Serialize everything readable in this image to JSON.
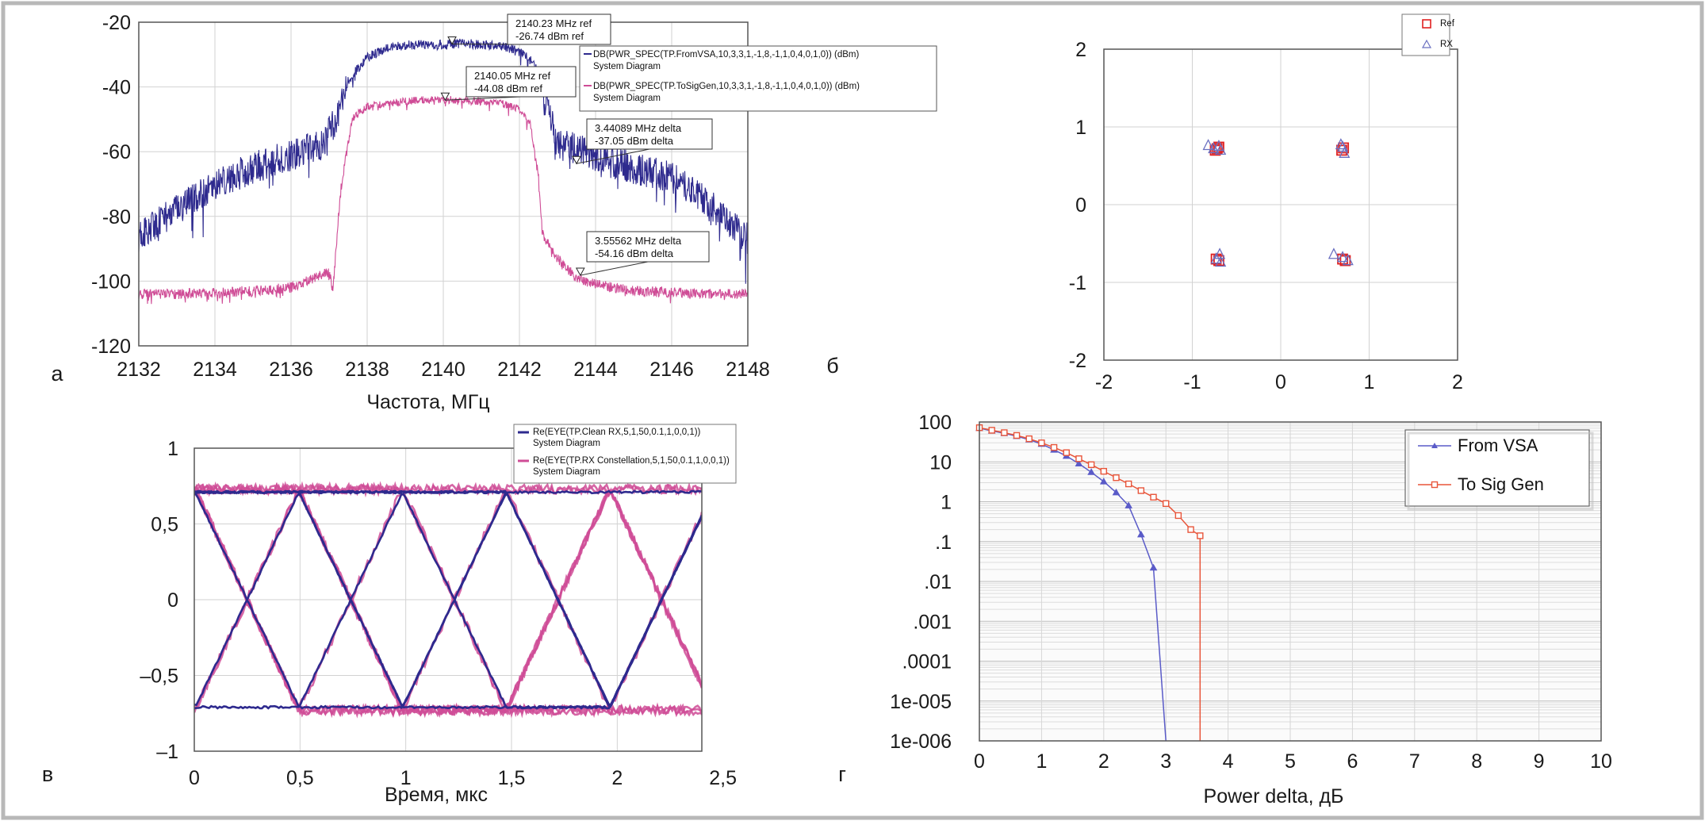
{
  "colors": {
    "vsa": "#2e2a8e",
    "siggen": "#cf4c96",
    "ref_marker": "#e02020",
    "rx_marker": "#6a6fc0",
    "ccdf_vsa": "#5a5bc8",
    "ccdf_siggen": "#e8553a",
    "frame": "#b8b8b8",
    "grid": "#d2d2d2"
  },
  "chart_data": [
    {
      "id": "spectrum",
      "type": "line",
      "panel_label": "а",
      "xlabel": "Частота, МГц",
      "ylabel": "",
      "xlim": [
        2132,
        2148
      ],
      "ylim": [
        -120,
        -20
      ],
      "xticks": [
        2132,
        2134,
        2136,
        2138,
        2140,
        2142,
        2144,
        2146,
        2148
      ],
      "yticks": [
        -20,
        -40,
        -60,
        -80,
        -100,
        -120
      ],
      "grid": true,
      "series": [
        {
          "name": "DB(PWR_SPEC(TP.FromVSA,10,3,3,1,-1,8,-1,1,0,4,0,1,0)) (dBm)",
          "subtitle": "System Diagram",
          "color_key": "vsa",
          "x": [
            2132,
            2133,
            2134,
            2135,
            2136,
            2136.8,
            2137.2,
            2137.5,
            2138,
            2138.5,
            2139,
            2139.5,
            2140,
            2140.5,
            2141,
            2141.5,
            2142,
            2142.4,
            2142.7,
            2143,
            2143.6,
            2144,
            2145,
            2146,
            2147,
            2148
          ],
          "y": [
            -86,
            -78,
            -70,
            -65,
            -61,
            -58,
            -50,
            -38,
            -31,
            -28,
            -27,
            -27,
            -27,
            -26.5,
            -27,
            -27.5,
            -29,
            -33,
            -45,
            -58,
            -59,
            -62,
            -65,
            -68,
            -76,
            -87
          ]
        },
        {
          "name": "DB(PWR_SPEC(TP.ToSigGen,10,3,3,1,-1,8,-1,1,0,4,0,1,0)) (dBm)",
          "subtitle": "System Diagram",
          "color_key": "siggen",
          "x": [
            2132,
            2133,
            2134,
            2135,
            2136,
            2137,
            2137.1,
            2137.3,
            2137.6,
            2138,
            2138.5,
            2139,
            2139.5,
            2140,
            2140.5,
            2141,
            2141.5,
            2142,
            2142.3,
            2142.5,
            2142.6,
            2143,
            2143.5,
            2144,
            2145,
            2146,
            2147,
            2148
          ],
          "y": [
            -104,
            -104,
            -103.5,
            -103,
            -102,
            -97,
            -103,
            -72,
            -50,
            -46,
            -45,
            -44.5,
            -44,
            -44,
            -44,
            -44.5,
            -45,
            -47,
            -52,
            -68,
            -85,
            -93,
            -99,
            -101,
            -103,
            -103.5,
            -104,
            -104
          ]
        }
      ],
      "annotations": [
        {
          "line1": "2140.23 MHz ref",
          "line2": "-26.74 dBm ref",
          "x": 2140.23,
          "y": -26.74
        },
        {
          "line1": "2140.05 MHz ref",
          "line2": "-44.08 dBm ref",
          "x": 2140.05,
          "y": -44.08
        },
        {
          "line1": "3.44089 MHz delta",
          "line2": "-37.05 dBm delta",
          "x": 2143.5,
          "y": -63.7
        },
        {
          "line1": "3.55562 MHz delta",
          "line2": "-54.16 dBm delta",
          "x": 2143.6,
          "y": -98.2
        }
      ]
    },
    {
      "id": "constellation",
      "type": "scatter",
      "panel_label": "б",
      "xlabel": "",
      "ylabel": "",
      "xlim": [
        -2,
        2
      ],
      "ylim": [
        -2,
        2
      ],
      "xticks": [
        -2,
        -1,
        0,
        1,
        2
      ],
      "yticks": [
        2,
        1,
        0,
        -1,
        -2
      ],
      "grid": true,
      "legend": "top-right",
      "series": [
        {
          "name": "Ref",
          "marker": "square",
          "color_key": "ref_marker",
          "x": [
            -0.72,
            -0.74,
            -0.7,
            0.69,
            0.71,
            -0.73,
            -0.7,
            0.7,
            0.73
          ],
          "y": [
            0.72,
            0.7,
            0.74,
            0.7,
            0.73,
            -0.7,
            -0.72,
            -0.7,
            -0.72
          ]
        },
        {
          "name": "RX",
          "marker": "triangle",
          "color_key": "rx_marker",
          "x": [
            -0.82,
            -0.76,
            -0.68,
            -0.7,
            0.7,
            0.72,
            0.68,
            -0.73,
            -0.69,
            0.6,
            0.7,
            0.76,
            -0.68
          ],
          "y": [
            0.76,
            0.72,
            0.7,
            0.75,
            0.74,
            0.66,
            0.77,
            -0.7,
            -0.64,
            -0.64,
            -0.68,
            -0.72,
            -0.74
          ]
        }
      ]
    },
    {
      "id": "eye",
      "type": "line",
      "panel_label": "в",
      "xlabel": "Время, мкс",
      "ylabel": "",
      "xlim": [
        0,
        2.4
      ],
      "ylim": [
        -1,
        1
      ],
      "xticks": [
        0,
        0.5,
        1,
        1.5,
        2,
        2.5
      ],
      "xtick_labels": [
        "0",
        "0,5",
        "1",
        "1,5",
        "2",
        "2,5"
      ],
      "yticks": [
        1,
        0.5,
        0,
        -0.5,
        -1
      ],
      "ytick_labels": [
        "1",
        "0,5",
        "0",
        "–0,5",
        "–1"
      ],
      "grid": true,
      "series": [
        {
          "name": "Re(EYE(TP.Clean RX,5,1,50,0.1,1,0,0,1))",
          "subtitle": "System Diagram",
          "color_key": "vsa",
          "symbol_period": 0.49,
          "amplitude": 0.71
        },
        {
          "name": "Re(EYE(TP.RX Constellation,5,1,50,0.1,1,0,0,1))",
          "subtitle": "System Diagram",
          "color_key": "siggen",
          "symbol_period": 0.49,
          "amplitude": 0.73
        }
      ]
    },
    {
      "id": "ccdf",
      "type": "line",
      "panel_label": "г",
      "xlabel": "Power delta, дБ",
      "ylabel": "",
      "xlim": [
        0,
        10
      ],
      "ylim_log10": [
        -6,
        2
      ],
      "xticks": [
        0,
        1,
        2,
        3,
        4,
        5,
        6,
        7,
        8,
        9,
        10
      ],
      "yticks": [
        100,
        10,
        1,
        0.1,
        0.01,
        0.001,
        0.0001,
        1e-05,
        1e-06
      ],
      "ytick_labels": [
        "100",
        "10",
        "1",
        ".1",
        ".01",
        ".001",
        ".0001",
        "1e-005",
        "1e-006"
      ],
      "grid": true,
      "legend": "top-right",
      "series": [
        {
          "name": "From VSA",
          "marker": "triangle",
          "color_key": "ccdf_vsa",
          "x": [
            0,
            0.2,
            0.4,
            0.6,
            0.8,
            1.0,
            1.2,
            1.4,
            1.6,
            1.8,
            2.0,
            2.2,
            2.4,
            2.6,
            2.8,
            3.0,
            3.0
          ],
          "y": [
            70,
            60,
            52,
            44,
            36,
            28,
            20,
            14,
            9,
            5.5,
            3.2,
            1.7,
            0.8,
            0.15,
            0.022,
            1e-06,
            1e-06
          ]
        },
        {
          "name": "To Sig Gen",
          "marker": "square",
          "color_key": "ccdf_siggen",
          "x": [
            0,
            0.2,
            0.4,
            0.6,
            0.8,
            1.0,
            1.2,
            1.4,
            1.6,
            1.8,
            2.0,
            2.2,
            2.4,
            2.6,
            2.8,
            3.0,
            3.2,
            3.4,
            3.55,
            3.55
          ],
          "y": [
            72,
            62,
            54,
            46,
            38,
            30,
            23,
            17,
            12,
            8.5,
            5.8,
            4,
            2.8,
            1.9,
            1.3,
            0.9,
            0.45,
            0.2,
            0.14,
            1e-06
          ]
        }
      ]
    }
  ]
}
